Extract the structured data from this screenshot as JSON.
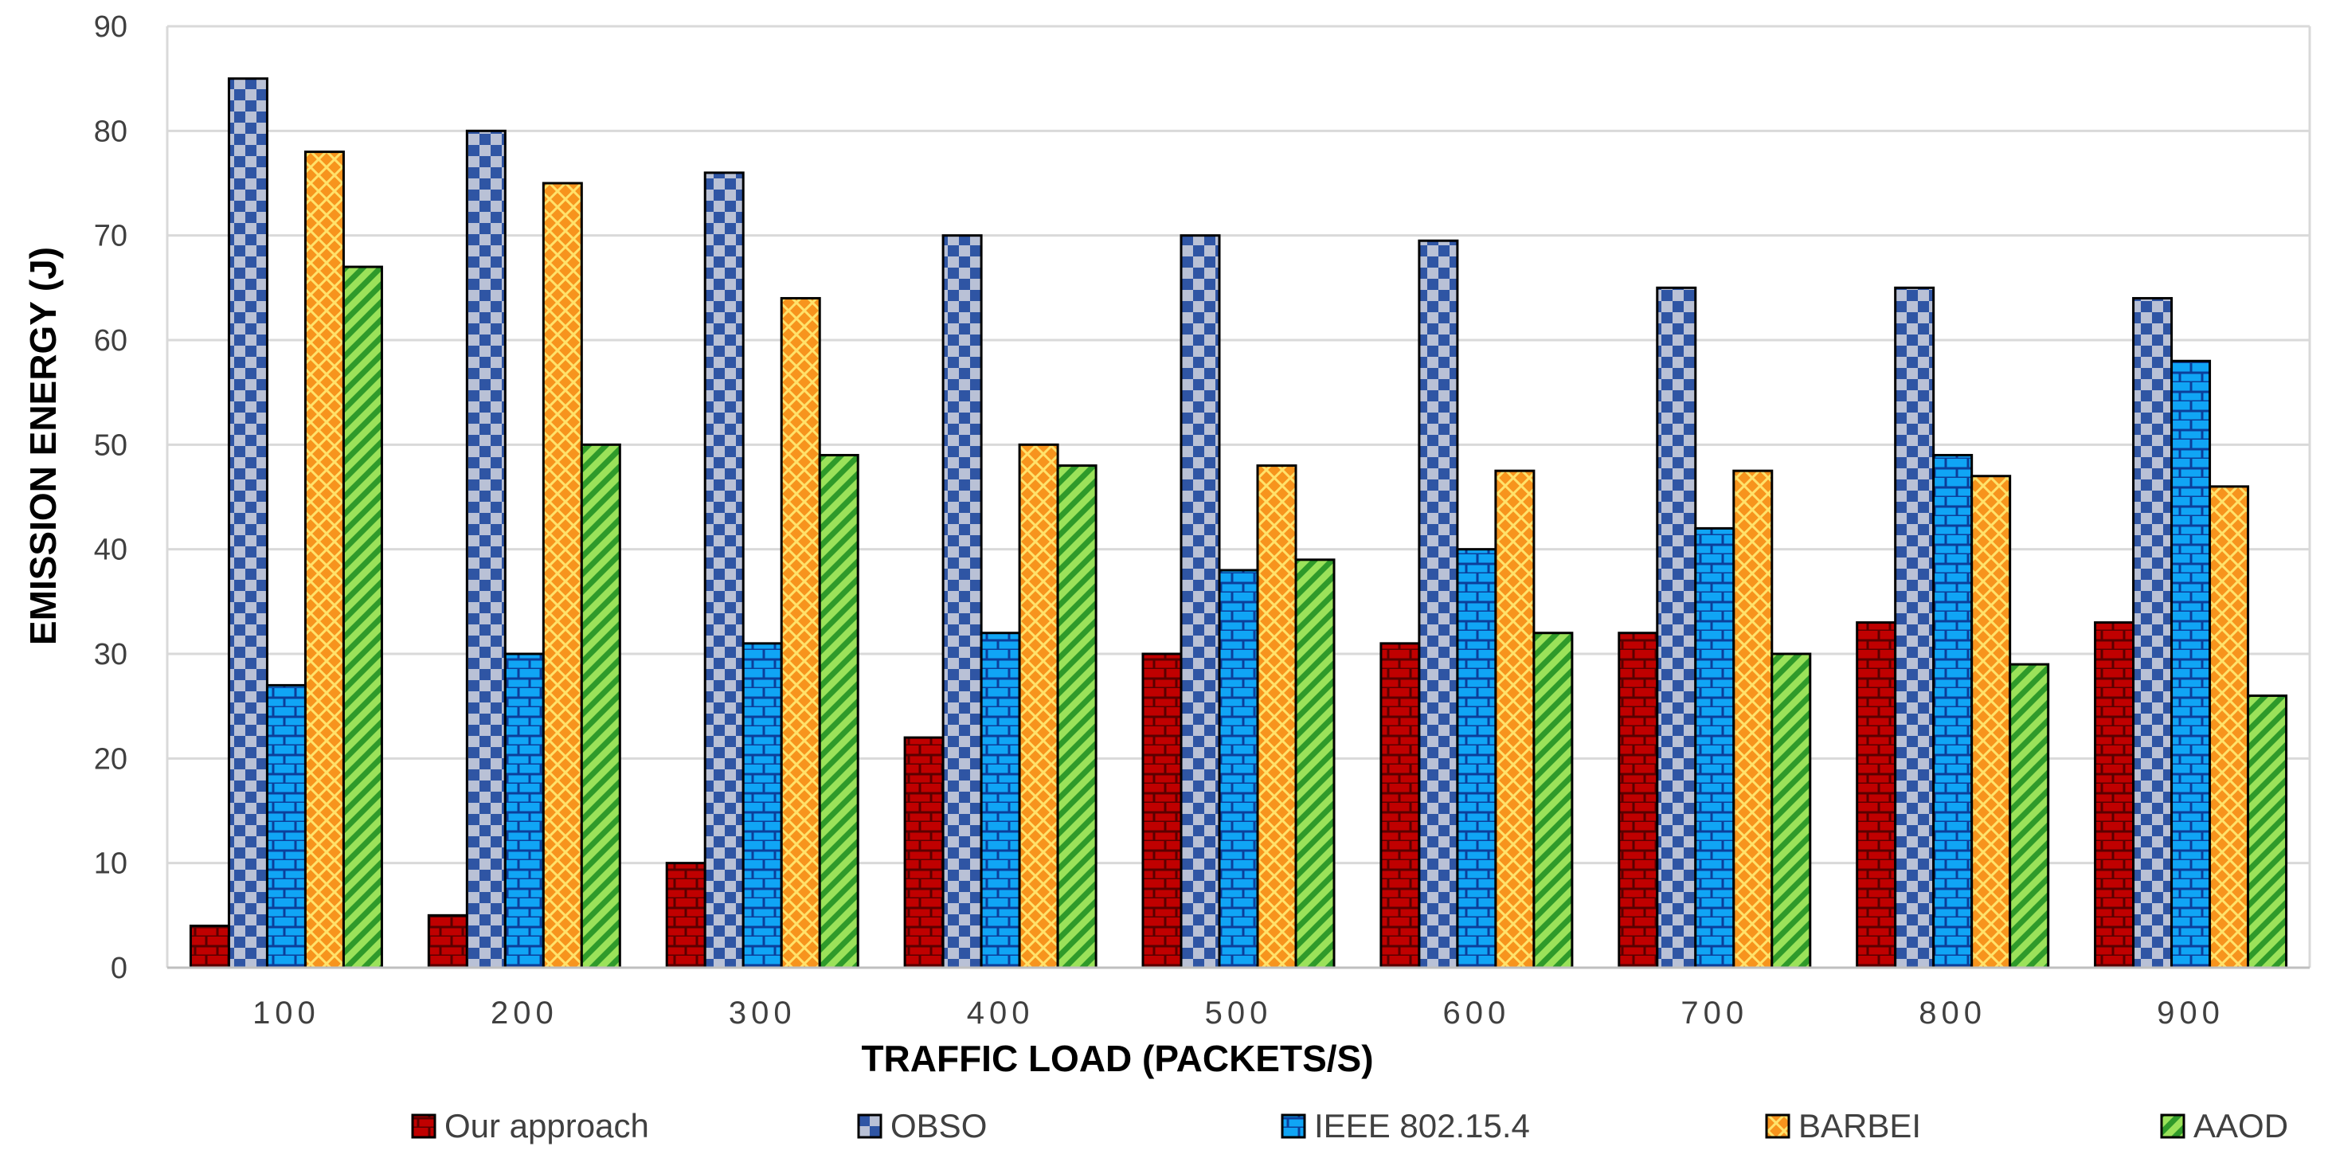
{
  "chart_data": {
    "type": "bar",
    "title": "",
    "xlabel": "TRAFFIC LOAD (PACKETS/S)",
    "ylabel": "EMISSION ENERGY (J)",
    "ylim": [
      0,
      90
    ],
    "yticks": [
      0,
      10,
      20,
      30,
      40,
      50,
      60,
      70,
      80,
      90
    ],
    "grid": true,
    "legend_position": "bottom",
    "categories": [
      "100",
      "200",
      "300",
      "400",
      "500",
      "600",
      "700",
      "800",
      "900"
    ],
    "series": [
      {
        "name": "Our approach",
        "color": "#c00000",
        "pattern": "brick-dark",
        "values": [
          4,
          5,
          10,
          22,
          30,
          31,
          32,
          33,
          33
        ]
      },
      {
        "name": "OBSO",
        "color": "#2f55a4",
        "pattern": "checker",
        "values": [
          85,
          80,
          76,
          70,
          70,
          69.5,
          65,
          65,
          64
        ]
      },
      {
        "name": "IEEE 802.15.4",
        "color": "#10a5f5",
        "pattern": "brick-light",
        "values": [
          27,
          30,
          31,
          32,
          38,
          40,
          42,
          49,
          58
        ]
      },
      {
        "name": "BARBEI",
        "color": "#f7941d",
        "pattern": "diamond",
        "values": [
          78,
          75,
          64,
          50,
          48,
          47.5,
          47.5,
          47,
          46
        ]
      },
      {
        "name": "AAOD",
        "color": "#5ccc3c",
        "pattern": "diagonal",
        "values": [
          67,
          50,
          49,
          48,
          39,
          32,
          30,
          29,
          26
        ]
      }
    ]
  }
}
